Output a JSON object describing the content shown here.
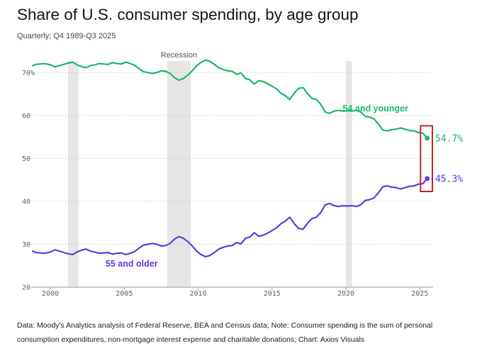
{
  "header": {
    "title": "Share of U.S. consumer spending, by age group",
    "subtitle": "Quarterly; Q4 1989-Q3 2025"
  },
  "footer": {
    "source": "Data: Moody's Analytics analysis of Federal Reserve, BEA and Census data; Note: Consumer spending is the sum of personal consumption expenditures, non-mortgage interest expense and charitable donations; Chart: Axios Visuals"
  },
  "colors": {
    "young": "#1fba6e",
    "old": "#6a3be4",
    "highlight": "#c62828",
    "shade": "#e6e6e6",
    "grid": "#c9c9c9"
  },
  "chart_data": {
    "type": "line",
    "title": "Share of U.S. consumer spending, by age group",
    "subtitle": "Quarterly; Q4 1989-Q3 2025",
    "xlim": [
      1998.7,
      2025.9
    ],
    "ylim": [
      20,
      75
    ],
    "y_ticks": [
      {
        "value": 20,
        "label": "20"
      },
      {
        "value": 30,
        "label": "30"
      },
      {
        "value": 40,
        "label": "40"
      },
      {
        "value": 50,
        "label": "50"
      },
      {
        "value": 60,
        "label": "60"
      },
      {
        "value": 70,
        "label": "70%"
      }
    ],
    "x_ticks": [
      {
        "value": 2000,
        "label": "2000"
      },
      {
        "value": 2005,
        "label": "2005"
      },
      {
        "value": 2010,
        "label": "2010"
      },
      {
        "value": 2015,
        "label": "2015"
      },
      {
        "value": 2020,
        "label": "2020"
      },
      {
        "value": 2025,
        "label": "2025"
      }
    ],
    "shaded_periods": [
      {
        "start": 2001.2,
        "end": 2001.9,
        "label": ""
      },
      {
        "start": 2007.9,
        "end": 2009.5,
        "label": "Recession"
      },
      {
        "start": 2020.0,
        "end": 2020.4,
        "label": ""
      }
    ],
    "series": [
      {
        "name": "54 and younger",
        "color": "#1fba6e",
        "end_label": "54.7%",
        "x": [
          1998.8,
          1999.0,
          1999.3,
          1999.6,
          2000.0,
          2000.3,
          2000.6,
          2000.9,
          2001.2,
          2001.5,
          2001.8,
          2002.1,
          2002.4,
          2002.7,
          2003.0,
          2003.3,
          2003.6,
          2003.9,
          2004.2,
          2004.5,
          2004.8,
          2005.1,
          2005.4,
          2005.7,
          2006.0,
          2006.3,
          2006.6,
          2006.9,
          2007.2,
          2007.5,
          2007.8,
          2008.1,
          2008.4,
          2008.7,
          2009.0,
          2009.3,
          2009.6,
          2009.9,
          2010.2,
          2010.5,
          2010.8,
          2011.1,
          2011.4,
          2011.7,
          2012.0,
          2012.3,
          2012.6,
          2012.9,
          2013.2,
          2013.5,
          2013.8,
          2014.1,
          2014.4,
          2014.7,
          2015.0,
          2015.3,
          2015.6,
          2015.9,
          2016.2,
          2016.5,
          2016.8,
          2017.1,
          2017.4,
          2017.7,
          2018.0,
          2018.3,
          2018.6,
          2018.9,
          2019.2,
          2019.5,
          2019.8,
          2020.1,
          2020.4,
          2020.7,
          2021.0,
          2021.3,
          2021.6,
          2021.9,
          2022.2,
          2022.5,
          2022.8,
          2023.1,
          2023.4,
          2023.7,
          2024.0,
          2024.3,
          2024.6,
          2024.9,
          2025.2,
          2025.5
        ],
        "values": [
          71.6,
          71.9,
          72.0,
          72.1,
          71.8,
          71.3,
          71.6,
          71.9,
          72.2,
          72.4,
          71.8,
          71.4,
          71.1,
          71.6,
          71.8,
          72.1,
          72.0,
          71.9,
          72.3,
          72.1,
          72.0,
          72.4,
          72.1,
          71.7,
          70.9,
          70.2,
          70.0,
          69.8,
          70.0,
          70.4,
          70.3,
          69.8,
          68.8,
          68.2,
          68.6,
          69.4,
          70.4,
          71.6,
          72.4,
          72.9,
          72.6,
          71.9,
          71.1,
          70.7,
          70.4,
          70.3,
          69.6,
          69.9,
          68.6,
          68.3,
          67.3,
          68.1,
          67.9,
          67.4,
          66.8,
          66.2,
          65.2,
          64.6,
          63.7,
          65.2,
          66.3,
          66.5,
          65.1,
          64.0,
          63.7,
          62.6,
          60.8,
          60.5,
          61.0,
          61.2,
          61.0,
          61.1,
          61.0,
          61.2,
          60.8,
          59.8,
          59.6,
          59.2,
          58.0,
          56.6,
          56.4,
          56.7,
          56.8,
          57.1,
          56.8,
          56.5,
          56.4,
          56.0,
          55.9,
          54.7
        ]
      },
      {
        "name": "55 and older",
        "color": "#6a3be4",
        "end_label": "45.3%",
        "x": [
          1998.8,
          1999.0,
          1999.3,
          1999.6,
          2000.0,
          2000.3,
          2000.6,
          2000.9,
          2001.2,
          2001.5,
          2001.8,
          2002.1,
          2002.4,
          2002.7,
          2003.0,
          2003.3,
          2003.6,
          2003.9,
          2004.2,
          2004.5,
          2004.8,
          2005.1,
          2005.4,
          2005.7,
          2006.0,
          2006.3,
          2006.6,
          2006.9,
          2007.2,
          2007.5,
          2007.8,
          2008.1,
          2008.4,
          2008.7,
          2009.0,
          2009.3,
          2009.6,
          2009.9,
          2010.2,
          2010.5,
          2010.8,
          2011.1,
          2011.4,
          2011.7,
          2012.0,
          2012.3,
          2012.6,
          2012.9,
          2013.2,
          2013.5,
          2013.8,
          2014.1,
          2014.4,
          2014.7,
          2015.0,
          2015.3,
          2015.6,
          2015.9,
          2016.2,
          2016.5,
          2016.8,
          2017.1,
          2017.4,
          2017.7,
          2018.0,
          2018.3,
          2018.6,
          2018.9,
          2019.2,
          2019.5,
          2019.8,
          2020.1,
          2020.4,
          2020.7,
          2021.0,
          2021.3,
          2021.6,
          2021.9,
          2022.2,
          2022.5,
          2022.8,
          2023.1,
          2023.4,
          2023.7,
          2024.0,
          2024.3,
          2024.6,
          2024.9,
          2025.2,
          2025.5
        ],
        "values": [
          28.4,
          28.1,
          28.0,
          27.9,
          28.2,
          28.7,
          28.4,
          28.1,
          27.8,
          27.6,
          28.2,
          28.6,
          28.9,
          28.4,
          28.2,
          27.9,
          28.0,
          28.1,
          27.7,
          27.9,
          28.0,
          27.6,
          27.9,
          28.3,
          29.1,
          29.8,
          30.0,
          30.2,
          30.0,
          29.6,
          29.7,
          30.2,
          31.2,
          31.8,
          31.4,
          30.6,
          29.6,
          28.4,
          27.6,
          27.1,
          27.4,
          28.1,
          28.9,
          29.3,
          29.6,
          29.7,
          30.4,
          30.1,
          31.4,
          31.7,
          32.7,
          31.9,
          32.1,
          32.6,
          33.2,
          33.8,
          34.8,
          35.4,
          36.3,
          34.8,
          33.7,
          33.5,
          34.9,
          36.0,
          36.3,
          37.4,
          39.2,
          39.5,
          39.0,
          38.8,
          39.0,
          38.9,
          39.0,
          38.8,
          39.2,
          40.2,
          40.4,
          40.8,
          42.0,
          43.4,
          43.6,
          43.3,
          43.2,
          42.9,
          43.2,
          43.5,
          43.6,
          44.0,
          44.1,
          45.3
        ]
      }
    ],
    "series_labels": [
      {
        "series": 0,
        "text": "54 and younger",
        "x": 2022.0,
        "y": 61.0
      },
      {
        "series": 1,
        "text": "55 and older",
        "x": 2005.5,
        "y": 24.8
      }
    ],
    "grid": "horizontal",
    "highlight_box": {
      "x": [
        2025.05,
        2025.85
      ],
      "y": [
        42.3,
        57.6
      ]
    }
  }
}
